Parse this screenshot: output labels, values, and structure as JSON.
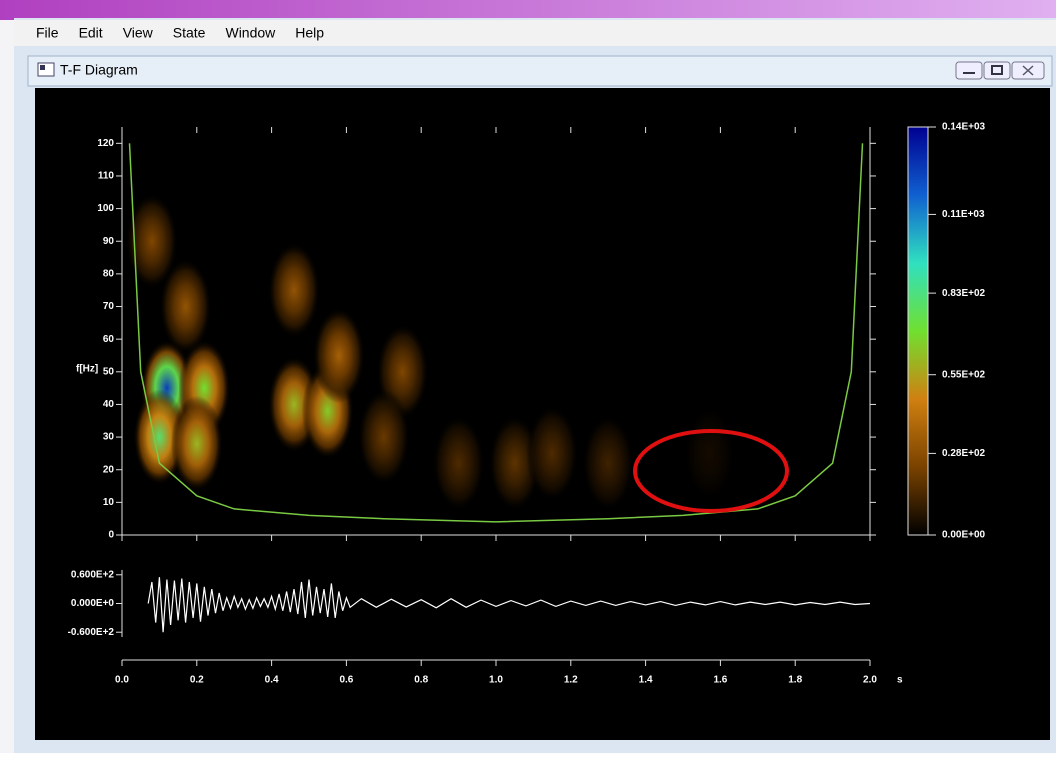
{
  "menu": [
    "File",
    "Edit",
    "View",
    "State",
    "Window",
    "Help"
  ],
  "window": {
    "title": "T-F Diagram"
  },
  "chart_data": {
    "type": "scalogram",
    "ylabel": "f[Hz]",
    "xlabel": "s",
    "xlim": [
      0,
      2
    ],
    "xticks": [
      {
        "value": 0,
        "label": "0.0"
      },
      {
        "value": 0.2,
        "label": "0.2"
      },
      {
        "value": 0.4,
        "label": "0.4"
      },
      {
        "value": 0.6,
        "label": "0.6"
      },
      {
        "value": 0.8,
        "label": "0.8"
      },
      {
        "value": 1,
        "label": "1.0"
      },
      {
        "value": 1.2,
        "label": "1.2"
      },
      {
        "value": 1.4,
        "label": "1.4"
      },
      {
        "value": 1.6,
        "label": "1.6"
      },
      {
        "value": 1.8,
        "label": "1.8"
      },
      {
        "value": 2,
        "label": "2.0"
      }
    ],
    "ylim": [
      0,
      125
    ],
    "yticks": [
      0,
      10,
      20,
      30,
      40,
      50,
      60,
      70,
      80,
      90,
      100,
      110,
      120
    ],
    "clim": [
      0,
      140
    ],
    "cticks": [
      {
        "value": 0,
        "label": "0.00E+00"
      },
      {
        "value": 28,
        "label": "0.28E+02"
      },
      {
        "value": 55,
        "label": "0.55E+02"
      },
      {
        "value": 83,
        "label": "0.83E+02"
      },
      {
        "value": 110,
        "label": "0.11E+03"
      },
      {
        "value": 140,
        "label": "0.14E+03"
      }
    ],
    "colormap": [
      "#000000",
      "#7a4200",
      "#d08010",
      "#70e030",
      "#30e0c0",
      "#1060d0",
      "#000090"
    ],
    "blobs": {
      "x": [
        0.12,
        0.1,
        0.22,
        0.2,
        0.08,
        0.17,
        0.46,
        0.55,
        0.58,
        0.46,
        0.75,
        0.7,
        0.9,
        1.05,
        1.15,
        1.3,
        1.57
      ],
      "y": [
        45,
        30,
        45,
        28,
        90,
        70,
        40,
        38,
        55,
        75,
        50,
        30,
        22,
        22,
        25,
        22,
        25
      ],
      "values": [
        125,
        80,
        70,
        60,
        25,
        30,
        60,
        65,
        35,
        30,
        25,
        20,
        15,
        18,
        15,
        12,
        4
      ]
    },
    "cone": {
      "color": "#7ac943",
      "x": [
        0.02,
        0.05,
        0.1,
        0.2,
        0.3,
        0.5,
        0.7,
        1.0,
        1.3,
        1.5,
        1.7,
        1.8,
        1.9,
        1.95,
        1.98
      ],
      "values": [
        120,
        50,
        22,
        12,
        8,
        6,
        5,
        4,
        5,
        6,
        8,
        12,
        22,
        50,
        120
      ]
    },
    "signal": {
      "color": "#ffffff",
      "ylim": [
        -70,
        70
      ],
      "yticks": [
        {
          "value": 60,
          "label": "0.600E+2"
        },
        {
          "value": 0,
          "label": "0.000E+0"
        },
        {
          "value": -60,
          "label": "-0.600E+2"
        }
      ],
      "x": [
        0.07,
        0.08,
        0.09,
        0.1,
        0.11,
        0.12,
        0.13,
        0.14,
        0.15,
        0.16,
        0.17,
        0.18,
        0.19,
        0.2,
        0.21,
        0.22,
        0.23,
        0.24,
        0.25,
        0.26,
        0.27,
        0.28,
        0.29,
        0.3,
        0.31,
        0.32,
        0.33,
        0.34,
        0.35,
        0.36,
        0.37,
        0.38,
        0.39,
        0.4,
        0.41,
        0.42,
        0.43,
        0.44,
        0.45,
        0.46,
        0.47,
        0.48,
        0.49,
        0.5,
        0.51,
        0.52,
        0.53,
        0.54,
        0.55,
        0.56,
        0.57,
        0.58,
        0.59,
        0.6,
        0.61,
        0.64,
        0.68,
        0.72,
        0.76,
        0.8,
        0.84,
        0.88,
        0.92,
        0.96,
        1.0,
        1.04,
        1.08,
        1.12,
        1.16,
        1.2,
        1.24,
        1.28,
        1.32,
        1.36,
        1.4,
        1.44,
        1.48,
        1.52,
        1.56,
        1.6,
        1.64,
        1.68,
        1.72,
        1.76,
        1.8,
        1.84,
        1.88,
        1.92,
        1.96,
        2.0
      ],
      "values": [
        0,
        45,
        -40,
        55,
        -60,
        50,
        -45,
        48,
        -35,
        52,
        -40,
        45,
        -30,
        42,
        -38,
        35,
        -25,
        30,
        -20,
        22,
        -15,
        12,
        -10,
        15,
        -8,
        10,
        -12,
        8,
        -10,
        12,
        -6,
        10,
        -8,
        15,
        -12,
        20,
        -15,
        25,
        -18,
        30,
        -22,
        45,
        -30,
        50,
        -25,
        35,
        -20,
        30,
        -28,
        42,
        -30,
        25,
        -15,
        12,
        -8,
        10,
        -8,
        9,
        -7,
        8,
        -9,
        10,
        -8,
        7,
        -6,
        6,
        -5,
        7,
        -6,
        5,
        -4,
        5,
        -4,
        4,
        -3,
        4,
        -4,
        3,
        -3,
        4,
        -3,
        3,
        -2,
        3,
        -3,
        2,
        -2,
        3,
        -2,
        0
      ]
    }
  }
}
